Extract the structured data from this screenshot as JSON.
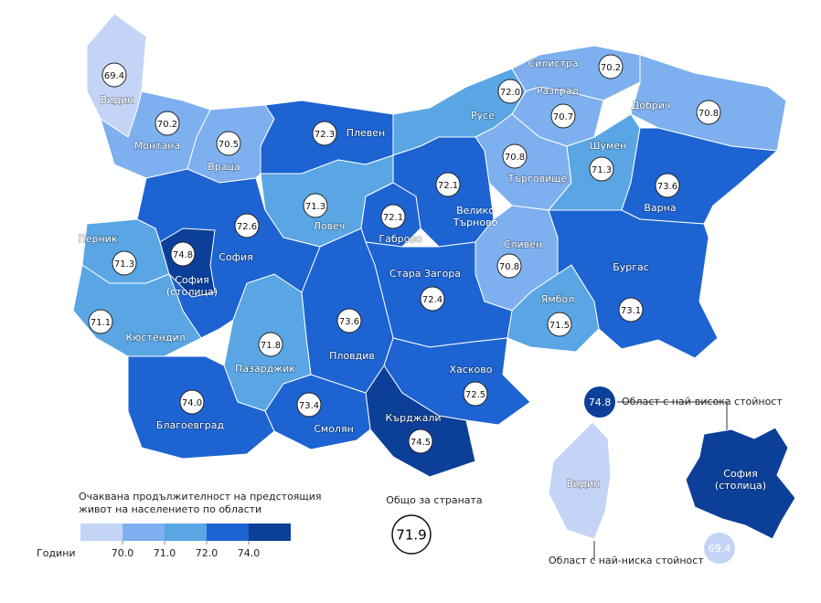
{
  "map": {
    "regions": [
      {
        "name": "Видин",
        "value": 69.4
      },
      {
        "name": "Монтана",
        "value": 70.2
      },
      {
        "name": "Враца",
        "value": 70.5
      },
      {
        "name": "Плевен",
        "value": 72.3
      },
      {
        "name": "Русе",
        "value": 72.0,
        "value_label": "72.0"
      },
      {
        "name": "Силистра",
        "value": 70.2
      },
      {
        "name": "Добрич",
        "value": 70.8
      },
      {
        "name": "Разград",
        "value": 70.7
      },
      {
        "name": "Търговище",
        "value": 70.8
      },
      {
        "name": "Шумен",
        "value": 71.3
      },
      {
        "name": "Варна",
        "value": 73.6
      },
      {
        "name": "Велико Търново",
        "value": 72.1
      },
      {
        "name": "Ловеч",
        "value": 71.3
      },
      {
        "name": "Габрово",
        "value": 72.1
      },
      {
        "name": "Сливен",
        "value": 70.8
      },
      {
        "name": "Ямбол",
        "value": 71.5
      },
      {
        "name": "Бургас",
        "value": 73.1
      },
      {
        "name": "Стара Загора",
        "value": 72.4
      },
      {
        "name": "Хасково",
        "value": 72.5
      },
      {
        "name": "Кърджали",
        "value": 74.5
      },
      {
        "name": "Смолян",
        "value": 73.4
      },
      {
        "name": "Пловдив",
        "value": 73.6
      },
      {
        "name": "Пазарджик",
        "value": 71.8
      },
      {
        "name": "Благоевград",
        "value": 74.0,
        "value_label": "74.0"
      },
      {
        "name": "София",
        "value": 72.6
      },
      {
        "name": "Перник",
        "value": 71.3
      },
      {
        "name": "Кюстендил",
        "value": 71.1
      },
      {
        "name": "София (столица)",
        "value": 74.8
      }
    ],
    "legend": {
      "title": "Очаквана продължителност на предстоящия живот на населението по области",
      "unit": "Години",
      "colors": [
        "#c3d4f6",
        "#7eb0ef",
        "#5aa6e4",
        "#1d63d2",
        "#0c3f98"
      ],
      "ticks": [
        {
          "value": 70,
          "label": "70.0"
        },
        {
          "value": 71,
          "label": "71.0"
        },
        {
          "value": 72,
          "label": "72.0"
        },
        {
          "value": 74,
          "label": "74.0"
        }
      ]
    },
    "total": {
      "label": "Общо за страната",
      "value": 71.9
    },
    "inset": {
      "highest_label": "Област с най-висока стойност",
      "lowest_label": "Област с най-ниска стойност"
    }
  }
}
